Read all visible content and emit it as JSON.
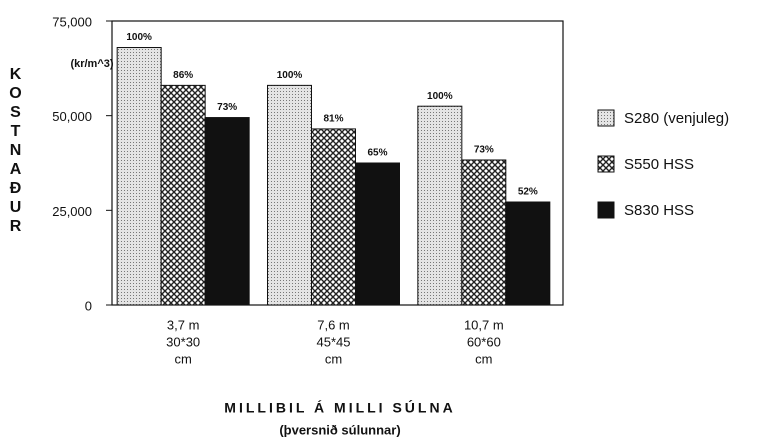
{
  "chart_data": {
    "type": "bar",
    "y_label": "KOSTNAÐUR",
    "y_unit": "(kr/m^3)",
    "x_label": "MILLIBIL Á MILLI SÚLNA",
    "x_sublabel": "(þversnið súlunnar)",
    "categories": [
      [
        "3,7 m",
        "30*30",
        "cm"
      ],
      [
        "7,6 m",
        "45*45",
        "cm"
      ],
      [
        "10,7 m",
        "60*60",
        "cm"
      ]
    ],
    "series": [
      {
        "name": "S280 (venjuleg)",
        "color": "#d8d8d8",
        "pattern": "dots",
        "values": [
          68000,
          58000,
          52500
        ],
        "percent_labels": [
          "100%",
          "100%",
          "100%"
        ]
      },
      {
        "name": "S550  HSS",
        "color": "#ffffff",
        "pattern": "crosshatch",
        "values": [
          58000,
          46500,
          38300
        ],
        "percent_labels": [
          "86%",
          "81%",
          "73%"
        ]
      },
      {
        "name": "S830  HSS",
        "color": "#111111",
        "pattern": "solid",
        "values": [
          49500,
          37500,
          27200
        ],
        "percent_labels": [
          "73%",
          "65%",
          "52%"
        ]
      }
    ],
    "ylim": [
      0,
      75000
    ],
    "yticks": [
      0,
      {
        "value": 25000,
        "label": "25,000"
      },
      {
        "value": 50000,
        "label": "50,000"
      },
      {
        "value": 75000,
        "label": "75,000"
      }
    ],
    "legend": "right"
  }
}
